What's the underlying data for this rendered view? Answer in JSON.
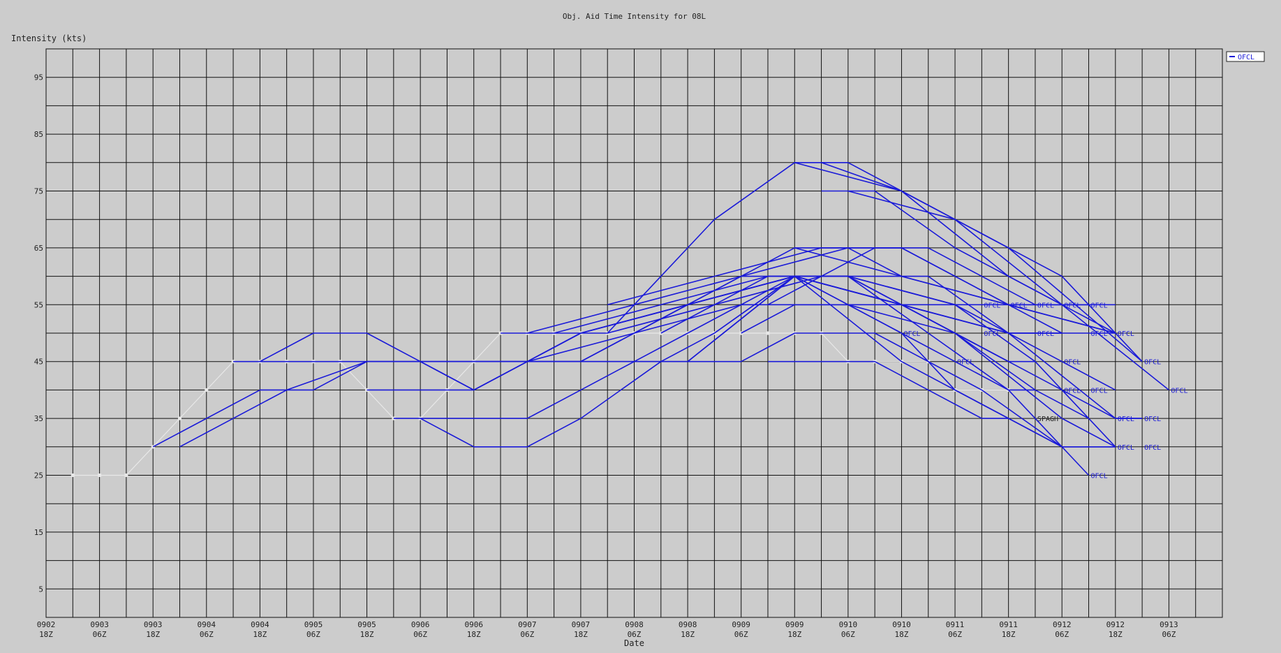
{
  "chart_data": {
    "type": "line",
    "title": "Obj. Aid Time Intensity for 08L",
    "ylabel": "Intensity (kts)",
    "xlabel": "Date",
    "grid": true,
    "legend_position": "top-right",
    "legend": [
      "OFCL"
    ],
    "colors": {
      "background": "#cccccc",
      "grid": "#111111",
      "forecast": "#1a1ad8",
      "best_track": "#e8e8e8",
      "frame": "#ffffff"
    },
    "ylim": [
      0,
      100
    ],
    "yticks": [
      5,
      15,
      25,
      35,
      45,
      55,
      65,
      75,
      85,
      95
    ],
    "x_range_hours": [
      0,
      264
    ],
    "x_ticks": [
      {
        "d": "0902",
        "h": "18Z"
      },
      {
        "d": "0903",
        "h": "06Z"
      },
      {
        "d": "0903",
        "h": "18Z"
      },
      {
        "d": "0904",
        "h": "06Z"
      },
      {
        "d": "0904",
        "h": "18Z"
      },
      {
        "d": "0905",
        "h": "06Z"
      },
      {
        "d": "0905",
        "h": "18Z"
      },
      {
        "d": "0906",
        "h": "06Z"
      },
      {
        "d": "0906",
        "h": "18Z"
      },
      {
        "d": "0907",
        "h": "06Z"
      },
      {
        "d": "0907",
        "h": "18Z"
      },
      {
        "d": "0908",
        "h": "06Z"
      },
      {
        "d": "0908",
        "h": "18Z"
      },
      {
        "d": "0909",
        "h": "06Z"
      },
      {
        "d": "0909",
        "h": "18Z"
      },
      {
        "d": "0910",
        "h": "06Z"
      },
      {
        "d": "0910",
        "h": "18Z"
      },
      {
        "d": "0911",
        "h": "06Z"
      },
      {
        "d": "0911",
        "h": "18Z"
      },
      {
        "d": "0912",
        "h": "06Z"
      },
      {
        "d": "0912",
        "h": "18Z"
      },
      {
        "d": "0913",
        "h": "06Z"
      }
    ],
    "best_track": [
      [
        6,
        25
      ],
      [
        12,
        25
      ],
      [
        18,
        25
      ],
      [
        24,
        30
      ],
      [
        30,
        35
      ],
      [
        36,
        40
      ],
      [
        42,
        45
      ],
      [
        48,
        45
      ],
      [
        54,
        45
      ],
      [
        60,
        45
      ],
      [
        66,
        45
      ],
      [
        72,
        40
      ],
      [
        78,
        35
      ],
      [
        84,
        35
      ],
      [
        90,
        40
      ],
      [
        96,
        45
      ],
      [
        102,
        50
      ],
      [
        108,
        50
      ],
      [
        114,
        50
      ],
      [
        120,
        50
      ],
      [
        126,
        50
      ],
      [
        132,
        50
      ],
      [
        138,
        50
      ],
      [
        144,
        50
      ],
      [
        150,
        50
      ],
      [
        156,
        50
      ],
      [
        162,
        50
      ],
      [
        168,
        50
      ],
      [
        174,
        50
      ],
      [
        180,
        45
      ],
      [
        186,
        45
      ],
      [
        192,
        45
      ],
      [
        198,
        45
      ],
      [
        204,
        40
      ],
      [
        210,
        40
      ],
      [
        216,
        40
      ]
    ],
    "series": [
      {
        "name": "OFCL",
        "points": [
          [
            24,
            30
          ],
          [
            48,
            40
          ],
          [
            60,
            40
          ],
          [
            72,
            45
          ],
          [
            120,
            45
          ],
          [
            144,
            45
          ],
          [
            168,
            60
          ],
          [
            192,
            50
          ],
          [
            204,
            40
          ],
          [
            216,
            35
          ]
        ]
      },
      {
        "name": "OFCL",
        "points": [
          [
            30,
            30
          ],
          [
            54,
            40
          ],
          [
            72,
            45
          ],
          [
            96,
            45
          ],
          [
            120,
            45
          ],
          [
            144,
            45
          ],
          [
            168,
            60
          ],
          [
            192,
            45
          ],
          [
            216,
            35
          ],
          [
            228,
            30
          ],
          [
            240,
            30
          ]
        ]
      },
      {
        "name": "OFCL",
        "points": [
          [
            42,
            45
          ],
          [
            48,
            45
          ],
          [
            60,
            50
          ],
          [
            72,
            50
          ],
          [
            84,
            45
          ],
          [
            96,
            40
          ],
          [
            120,
            50
          ],
          [
            144,
            55
          ],
          [
            168,
            60
          ],
          [
            192,
            55
          ],
          [
            216,
            45
          ]
        ]
      },
      {
        "name": "OFCL",
        "points": [
          [
            48,
            45
          ],
          [
            72,
            45
          ],
          [
            96,
            45
          ],
          [
            120,
            45
          ],
          [
            144,
            55
          ],
          [
            168,
            60
          ],
          [
            192,
            50
          ],
          [
            216,
            40
          ],
          [
            222,
            40
          ]
        ]
      },
      {
        "name": "OFCL",
        "points": [
          [
            72,
            40
          ],
          [
            96,
            40
          ],
          [
            120,
            50
          ],
          [
            144,
            55
          ],
          [
            168,
            65
          ],
          [
            192,
            60
          ],
          [
            216,
            55
          ],
          [
            228,
            55
          ]
        ]
      },
      {
        "name": "OFCL",
        "points": [
          [
            78,
            35
          ],
          [
            84,
            35
          ],
          [
            96,
            30
          ],
          [
            108,
            30
          ],
          [
            120,
            35
          ],
          [
            138,
            45
          ],
          [
            150,
            50
          ],
          [
            168,
            60
          ],
          [
            192,
            55
          ],
          [
            216,
            50
          ],
          [
            228,
            50
          ]
        ]
      },
      {
        "name": "OFCL",
        "points": [
          [
            84,
            35
          ],
          [
            108,
            35
          ],
          [
            120,
            40
          ],
          [
            132,
            45
          ],
          [
            144,
            50
          ],
          [
            168,
            60
          ],
          [
            192,
            55
          ],
          [
            216,
            50
          ],
          [
            240,
            50
          ]
        ]
      },
      {
        "name": "OFCL",
        "points": [
          [
            84,
            45
          ],
          [
            96,
            40
          ],
          [
            120,
            50
          ],
          [
            144,
            55
          ],
          [
            168,
            60
          ],
          [
            192,
            55
          ],
          [
            216,
            45
          ],
          [
            222,
            45
          ]
        ]
      },
      {
        "name": "OFCL",
        "points": [
          [
            96,
            45
          ],
          [
            120,
            45
          ],
          [
            144,
            55
          ],
          [
            168,
            60
          ],
          [
            180,
            60
          ],
          [
            192,
            55
          ],
          [
            216,
            50
          ],
          [
            228,
            50
          ]
        ]
      },
      {
        "name": "OFCL",
        "points": [
          [
            102,
            50
          ],
          [
            126,
            50
          ],
          [
            138,
            60
          ],
          [
            150,
            70
          ],
          [
            168,
            80
          ],
          [
            180,
            80
          ],
          [
            192,
            75
          ],
          [
            216,
            60
          ],
          [
            228,
            55
          ],
          [
            234,
            55
          ]
        ]
      },
      {
        "name": "OFCL",
        "points": [
          [
            108,
            50
          ],
          [
            132,
            55
          ],
          [
            156,
            60
          ],
          [
            180,
            65
          ],
          [
            192,
            65
          ],
          [
            216,
            55
          ],
          [
            240,
            50
          ]
        ]
      },
      {
        "name": "OFCL",
        "points": [
          [
            114,
            50
          ],
          [
            138,
            55
          ],
          [
            162,
            60
          ],
          [
            180,
            60
          ],
          [
            204,
            55
          ],
          [
            228,
            45
          ],
          [
            240,
            40
          ]
        ]
      },
      {
        "name": "OFCL",
        "points": [
          [
            120,
            50
          ],
          [
            144,
            55
          ],
          [
            168,
            60
          ],
          [
            192,
            55
          ],
          [
            216,
            45
          ],
          [
            240,
            35
          ],
          [
            246,
            35
          ]
        ]
      },
      {
        "name": "OFCL",
        "points": [
          [
            126,
            50
          ],
          [
            150,
            55
          ],
          [
            174,
            60
          ],
          [
            198,
            60
          ],
          [
            216,
            50
          ],
          [
            240,
            35
          ],
          [
            246,
            35
          ]
        ]
      },
      {
        "name": "OFCL",
        "points": [
          [
            132,
            50
          ],
          [
            156,
            60
          ],
          [
            180,
            60
          ],
          [
            204,
            55
          ],
          [
            222,
            45
          ],
          [
            240,
            30
          ]
        ]
      },
      {
        "name": "OFCL",
        "points": [
          [
            138,
            50
          ],
          [
            162,
            60
          ],
          [
            180,
            60
          ],
          [
            204,
            50
          ],
          [
            228,
            35
          ],
          [
            240,
            30
          ]
        ]
      },
      {
        "name": "OFCL",
        "points": [
          [
            144,
            45
          ],
          [
            156,
            45
          ],
          [
            168,
            50
          ],
          [
            186,
            50
          ],
          [
            210,
            40
          ],
          [
            228,
            30
          ],
          [
            240,
            30
          ]
        ]
      },
      {
        "name": "OFCL",
        "points": [
          [
            150,
            50
          ],
          [
            168,
            60
          ],
          [
            180,
            60
          ],
          [
            198,
            50
          ],
          [
            216,
            40
          ],
          [
            234,
            25
          ]
        ]
      },
      {
        "name": "OFCL",
        "points": [
          [
            156,
            50
          ],
          [
            168,
            55
          ],
          [
            180,
            55
          ],
          [
            204,
            55
          ],
          [
            228,
            55
          ],
          [
            240,
            55
          ]
        ]
      },
      {
        "name": "OFCL",
        "points": [
          [
            162,
            55
          ],
          [
            174,
            60
          ],
          [
            186,
            65
          ],
          [
            198,
            65
          ],
          [
            222,
            55
          ],
          [
            234,
            55
          ]
        ]
      },
      {
        "name": "OFCL",
        "points": [
          [
            162,
            45
          ],
          [
            174,
            45
          ],
          [
            186,
            45
          ],
          [
            198,
            40
          ],
          [
            210,
            35
          ],
          [
            216,
            35
          ],
          [
            228,
            30
          ]
        ]
      },
      {
        "name": "OFCL",
        "points": [
          [
            168,
            65
          ],
          [
            180,
            65
          ],
          [
            192,
            60
          ],
          [
            216,
            55
          ],
          [
            240,
            50
          ]
        ]
      },
      {
        "name": "OFCL",
        "points": [
          [
            168,
            80
          ],
          [
            192,
            75
          ],
          [
            216,
            65
          ],
          [
            246,
            45
          ]
        ]
      },
      {
        "name": "OFCL",
        "points": [
          [
            174,
            80
          ],
          [
            192,
            75
          ],
          [
            204,
            70
          ],
          [
            228,
            55
          ],
          [
            252,
            40
          ]
        ]
      },
      {
        "name": "OFCL",
        "points": [
          [
            174,
            75
          ],
          [
            186,
            75
          ],
          [
            204,
            65
          ],
          [
            228,
            55
          ],
          [
            240,
            50
          ]
        ]
      },
      {
        "name": "OFCL",
        "points": [
          [
            180,
            75
          ],
          [
            204,
            70
          ],
          [
            228,
            60
          ],
          [
            246,
            45
          ]
        ]
      },
      {
        "name": "OFCL",
        "points": [
          [
            126,
            55
          ],
          [
            150,
            60
          ],
          [
            174,
            65
          ],
          [
            192,
            65
          ],
          [
            216,
            55
          ],
          [
            228,
            50
          ]
        ]
      },
      {
        "name": "OFCL",
        "points": [
          [
            108,
            45
          ],
          [
            132,
            50
          ],
          [
            156,
            55
          ],
          [
            180,
            55
          ],
          [
            204,
            50
          ],
          [
            222,
            40
          ],
          [
            234,
            35
          ]
        ]
      }
    ],
    "point_labels": [
      {
        "text": "OFCL",
        "x": 204,
        "y": 45
      },
      {
        "text": "OFCL",
        "x": 210,
        "y": 55
      },
      {
        "text": "OFCL",
        "x": 216,
        "y": 55
      },
      {
        "text": "OFCL",
        "x": 222,
        "y": 55
      },
      {
        "text": "OFCL",
        "x": 228,
        "y": 55
      },
      {
        "text": "OFCL",
        "x": 234,
        "y": 55
      },
      {
        "text": "OFCL",
        "x": 192,
        "y": 50
      },
      {
        "text": "OFCL",
        "x": 210,
        "y": 50
      },
      {
        "text": "OFCL",
        "x": 222,
        "y": 50
      },
      {
        "text": "OFCL",
        "x": 234,
        "y": 50
      },
      {
        "text": "OFCL",
        "x": 240,
        "y": 50
      },
      {
        "text": "OFCL",
        "x": 228,
        "y": 45
      },
      {
        "text": "OFCL",
        "x": 246,
        "y": 45
      },
      {
        "text": "OFCL",
        "x": 228,
        "y": 40
      },
      {
        "text": "OFCL",
        "x": 234,
        "y": 40
      },
      {
        "text": "OFCL",
        "x": 252,
        "y": 40
      },
      {
        "text": "OFCL",
        "x": 240,
        "y": 35
      },
      {
        "text": "OFCL",
        "x": 246,
        "y": 35
      },
      {
        "text": "OFCL",
        "x": 240,
        "y": 30
      },
      {
        "text": "OFCL",
        "x": 246,
        "y": 30
      },
      {
        "text": "OFCL",
        "x": 234,
        "y": 25
      },
      {
        "text": "SPAGH",
        "x": 222,
        "y": 35,
        "color": "#222222"
      }
    ]
  }
}
